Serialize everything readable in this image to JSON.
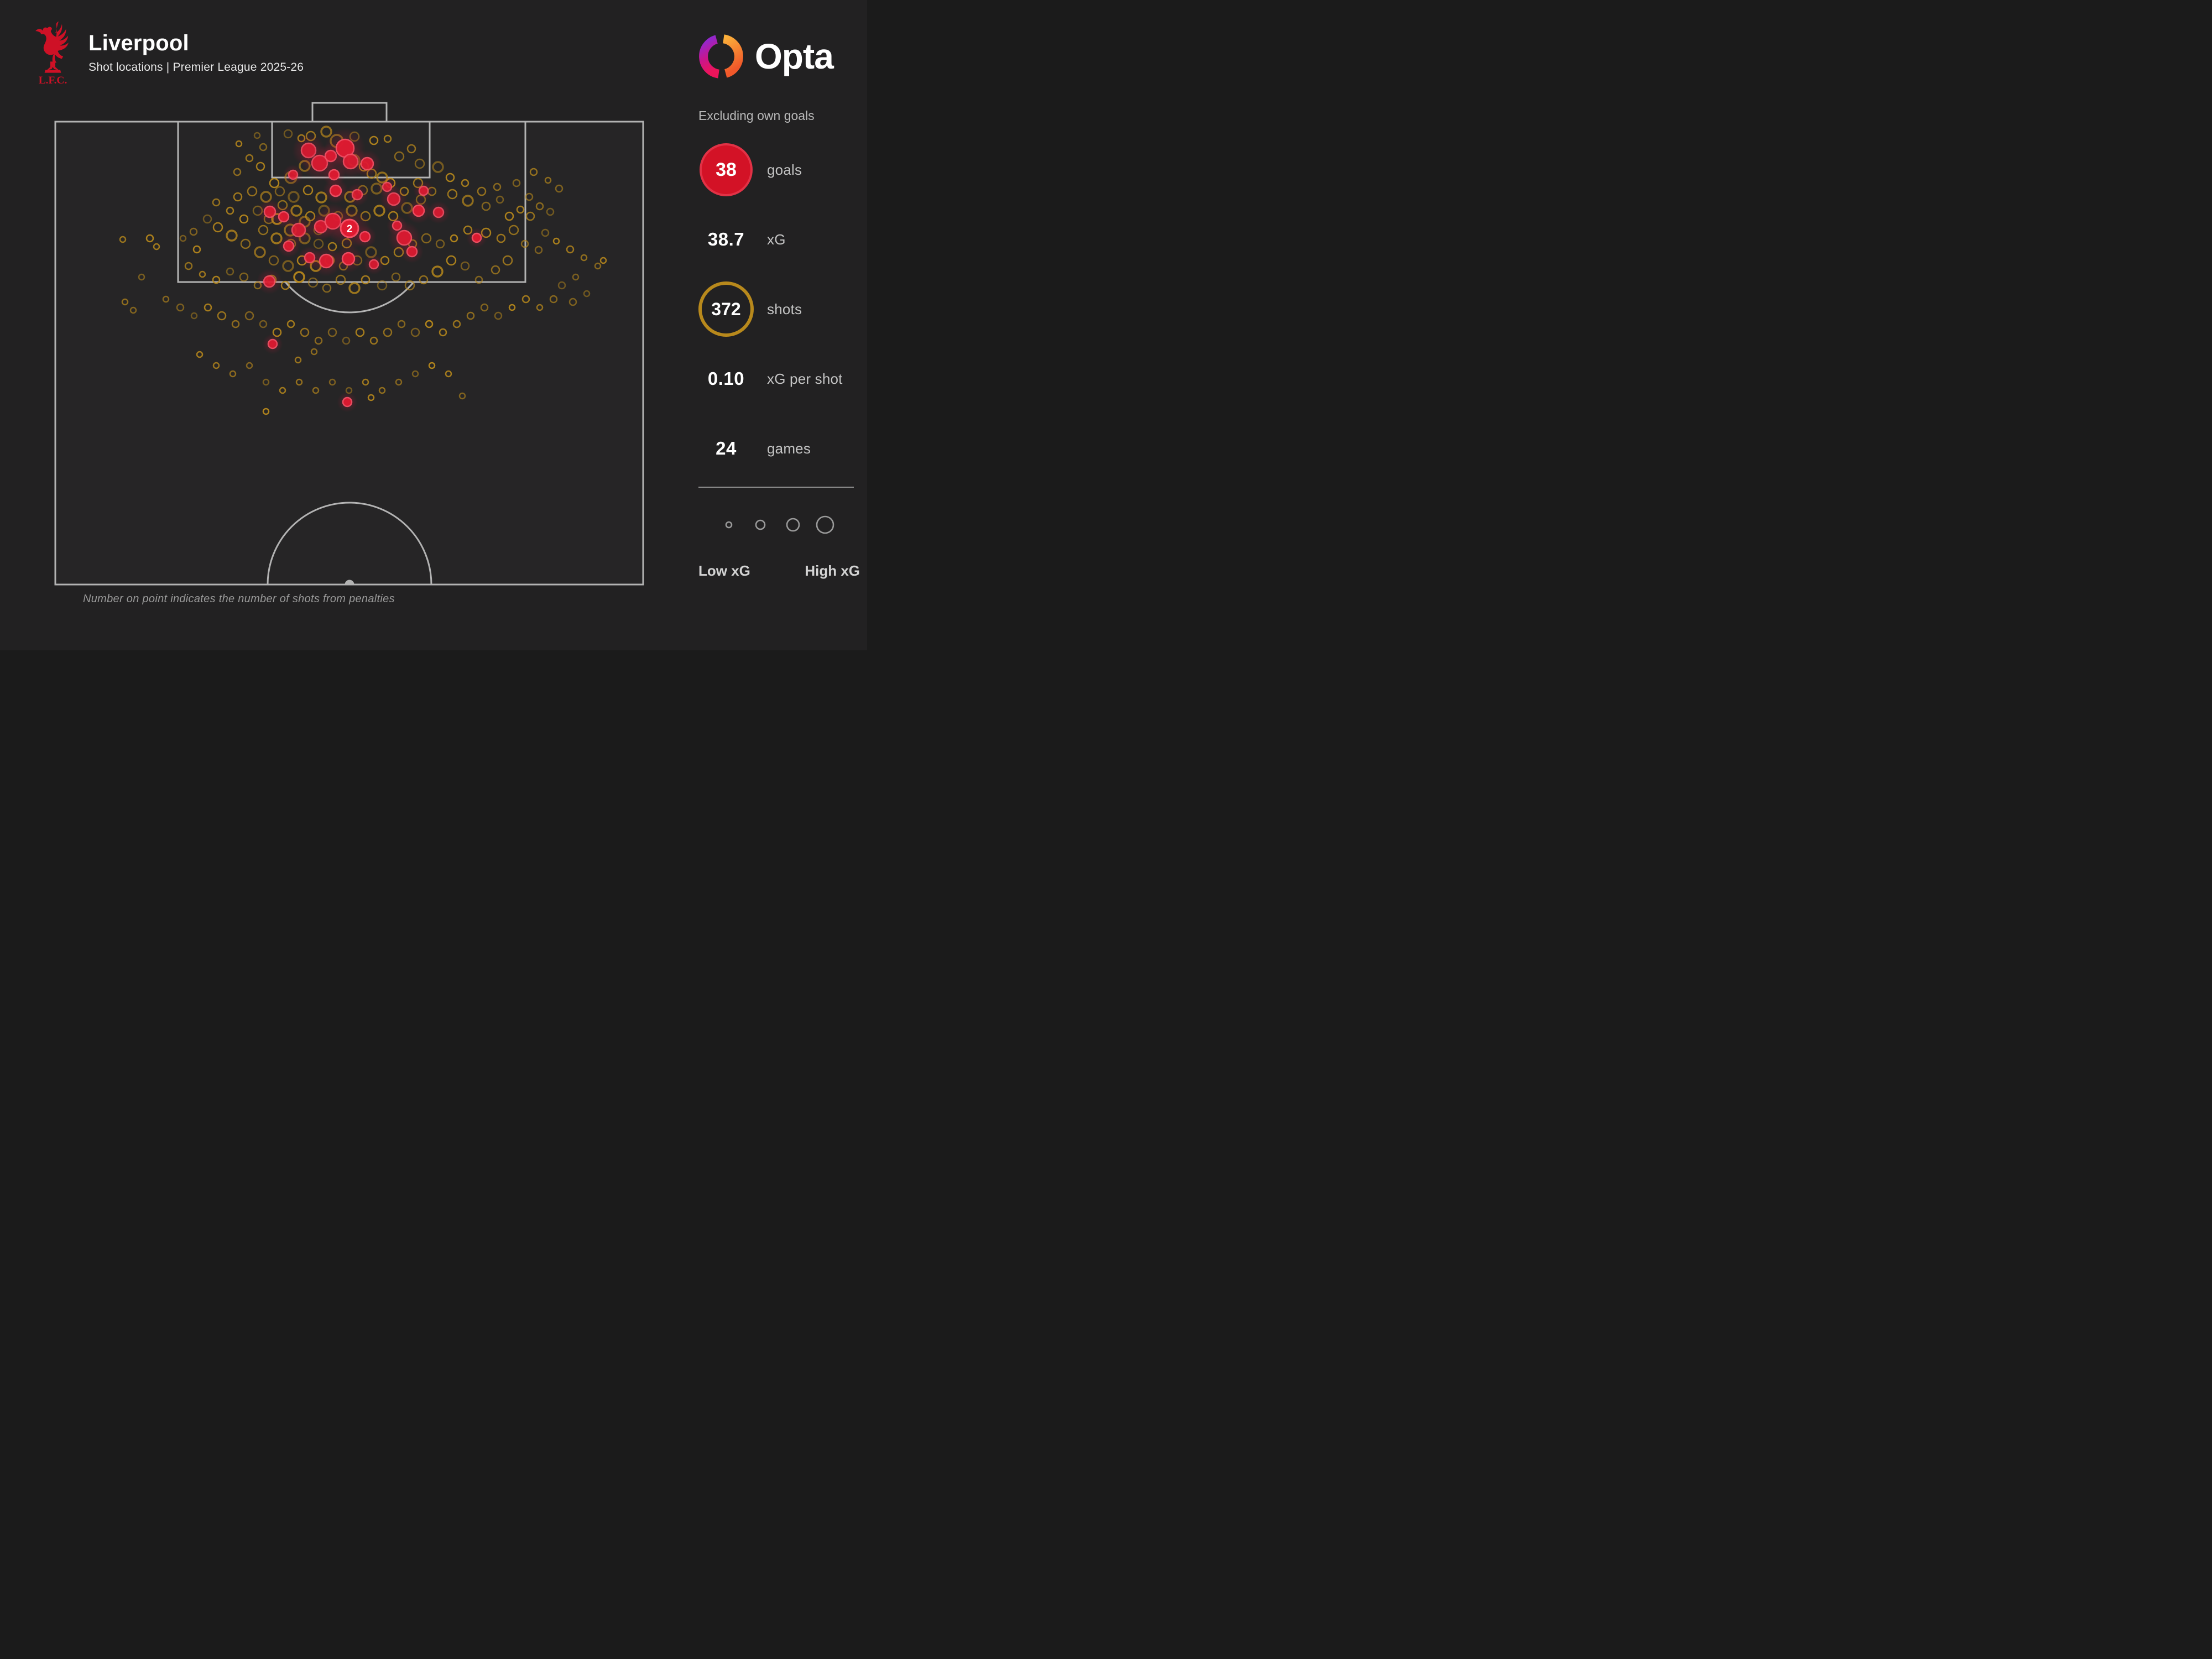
{
  "header": {
    "title": "Liverpool",
    "subtitle": "Shot locations | Premier League 2025-26",
    "crest_text": "L.F.C."
  },
  "brand": {
    "name": "Opta"
  },
  "stats": {
    "note": "Excluding own goals",
    "items": [
      {
        "value": "38",
        "label": "goals"
      },
      {
        "value": "38.7",
        "label": "xG"
      },
      {
        "value": "372",
        "label": "shots"
      },
      {
        "value": "0.10",
        "label": "xG per shot"
      },
      {
        "value": "24",
        "label": "games"
      }
    ]
  },
  "legend": {
    "low_label": "Low xG",
    "high_label": "High xG",
    "sizes": [
      5,
      8,
      11,
      15
    ]
  },
  "caption": "Number on point indicates the number of shots from penalties",
  "colors": {
    "background": "#222122",
    "pitch_line": "#b3b3b3",
    "goal_fill": "#df1a31",
    "goal_ring": "#f25064",
    "goal_halo": "#d6173a",
    "shot_stroke": "#b8891c",
    "badge_red": "#d31226",
    "badge_gold": "#b8891c",
    "text_gray": "#c4c4c4"
  },
  "chart_data": {
    "type": "scatter",
    "title": "Liverpool shot locations, Premier League 2025-26",
    "legend_note": "marker size encodes xG (Low xG small, High xG large); gold open circles = shots, red filled = goals",
    "coordinate_space": "page pixels, attacking goal at top, pitch rect x:100-1163 y:220-1057",
    "penalty_marker": {
      "x": 632,
      "y": 413,
      "r": 16,
      "label": "2"
    },
    "series": [
      {
        "name": "goals",
        "points": [
          [
            558,
            272,
            13
          ],
          [
            578,
            295,
            14
          ],
          [
            598,
            282,
            10
          ],
          [
            624,
            268,
            16
          ],
          [
            634,
            292,
            13
          ],
          [
            664,
            296,
            11
          ],
          [
            604,
            316,
            9
          ],
          [
            530,
            316,
            8
          ],
          [
            488,
            383,
            10
          ],
          [
            513,
            392,
            9
          ],
          [
            540,
            416,
            12
          ],
          [
            580,
            410,
            11
          ],
          [
            602,
            400,
            14
          ],
          [
            660,
            428,
            9
          ],
          [
            712,
            360,
            11
          ],
          [
            731,
            430,
            13
          ],
          [
            757,
            381,
            10
          ],
          [
            793,
            384,
            9
          ],
          [
            718,
            408,
            8
          ],
          [
            607,
            345,
            10
          ],
          [
            646,
            352,
            9
          ],
          [
            560,
            466,
            9
          ],
          [
            590,
            472,
            12
          ],
          [
            630,
            468,
            11
          ],
          [
            676,
            478,
            8
          ],
          [
            745,
            455,
            9
          ],
          [
            862,
            430,
            8
          ],
          [
            487,
            509,
            10
          ],
          [
            493,
            622,
            8
          ],
          [
            628,
            727,
            8
          ],
          [
            700,
            338,
            8
          ],
          [
            766,
            345,
            8
          ],
          [
            522,
            445,
            9
          ]
        ]
      },
      {
        "name": "shots",
        "points": [
          [
            521,
            242,
            7
          ],
          [
            545,
            250,
            6
          ],
          [
            562,
            246,
            8
          ],
          [
            590,
            238,
            9
          ],
          [
            609,
            255,
            11
          ],
          [
            641,
            247,
            8
          ],
          [
            676,
            254,
            7
          ],
          [
            701,
            251,
            6
          ],
          [
            744,
            269,
            7
          ],
          [
            722,
            283,
            8
          ],
          [
            759,
            296,
            8
          ],
          [
            640,
            290,
            10
          ],
          [
            658,
            301,
            8
          ],
          [
            672,
            314,
            8
          ],
          [
            691,
            321,
            9
          ],
          [
            551,
            300,
            9
          ],
          [
            526,
            321,
            10
          ],
          [
            496,
            331,
            8
          ],
          [
            471,
            301,
            7
          ],
          [
            451,
            286,
            6
          ],
          [
            429,
            311,
            6
          ],
          [
            476,
            266,
            6
          ],
          [
            792,
            302,
            9
          ],
          [
            814,
            321,
            7
          ],
          [
            841,
            331,
            6
          ],
          [
            871,
            346,
            7
          ],
          [
            899,
            338,
            6
          ],
          [
            934,
            331,
            6
          ],
          [
            465,
            245,
            5
          ],
          [
            432,
            260,
            5
          ],
          [
            818,
            351,
            8
          ],
          [
            846,
            363,
            9
          ],
          [
            879,
            373,
            7
          ],
          [
            904,
            361,
            6
          ],
          [
            921,
            391,
            7
          ],
          [
            941,
            379,
            6
          ],
          [
            959,
            391,
            7
          ],
          [
            976,
            373,
            6
          ],
          [
            957,
            356,
            6
          ],
          [
            995,
            383,
            6
          ],
          [
            879,
            421,
            8
          ],
          [
            906,
            431,
            7
          ],
          [
            929,
            416,
            8
          ],
          [
            949,
            441,
            6
          ],
          [
            974,
            452,
            6
          ],
          [
            375,
            396,
            7
          ],
          [
            394,
            411,
            8
          ],
          [
            419,
            426,
            9
          ],
          [
            444,
            441,
            8
          ],
          [
            350,
            419,
            6
          ],
          [
            331,
            431,
            5
          ],
          [
            356,
            451,
            6
          ],
          [
            430,
            356,
            7
          ],
          [
            456,
            346,
            8
          ],
          [
            481,
            356,
            9
          ],
          [
            506,
            346,
            8
          ],
          [
            531,
            356,
            9
          ],
          [
            557,
            344,
            8
          ],
          [
            581,
            357,
            9
          ],
          [
            633,
            356,
            9
          ],
          [
            656,
            344,
            8
          ],
          [
            681,
            341,
            9
          ],
          [
            706,
            331,
            8
          ],
          [
            731,
            346,
            7
          ],
          [
            756,
            331,
            8
          ],
          [
            781,
            346,
            7
          ],
          [
            761,
            361,
            8
          ],
          [
            736,
            376,
            9
          ],
          [
            711,
            391,
            8
          ],
          [
            686,
            381,
            9
          ],
          [
            661,
            391,
            8
          ],
          [
            636,
            381,
            9
          ],
          [
            611,
            391,
            8
          ],
          [
            586,
            381,
            9
          ],
          [
            561,
            391,
            8
          ],
          [
            536,
            381,
            9
          ],
          [
            511,
            371,
            8
          ],
          [
            486,
            396,
            8
          ],
          [
            466,
            381,
            8
          ],
          [
            441,
            396,
            7
          ],
          [
            416,
            381,
            6
          ],
          [
            391,
            366,
            6
          ],
          [
            525,
            416,
            10
          ],
          [
            551,
            401,
            9
          ],
          [
            576,
            416,
            8
          ],
          [
            501,
            396,
            9
          ],
          [
            500,
            431,
            9
          ],
          [
            476,
            416,
            8
          ],
          [
            526,
            441,
            8
          ],
          [
            551,
            431,
            9
          ],
          [
            576,
            441,
            8
          ],
          [
            601,
            446,
            7
          ],
          [
            627,
            440,
            8
          ],
          [
            470,
            456,
            9
          ],
          [
            495,
            471,
            8
          ],
          [
            521,
            481,
            9
          ],
          [
            546,
            471,
            8
          ],
          [
            571,
            481,
            9
          ],
          [
            596,
            471,
            8
          ],
          [
            621,
            481,
            7
          ],
          [
            646,
            471,
            8
          ],
          [
            671,
            456,
            9
          ],
          [
            696,
            471,
            7
          ],
          [
            721,
            456,
            8
          ],
          [
            746,
            441,
            7
          ],
          [
            771,
            431,
            8
          ],
          [
            796,
            441,
            7
          ],
          [
            821,
            431,
            6
          ],
          [
            846,
            416,
            7
          ],
          [
            918,
            471,
            8
          ],
          [
            896,
            488,
            7
          ],
          [
            866,
            506,
            6
          ],
          [
            841,
            481,
            7
          ],
          [
            816,
            471,
            8
          ],
          [
            791,
            491,
            9
          ],
          [
            766,
            506,
            7
          ],
          [
            741,
            516,
            8
          ],
          [
            716,
            501,
            7
          ],
          [
            691,
            516,
            8
          ],
          [
            661,
            506,
            7
          ],
          [
            641,
            521,
            9
          ],
          [
            616,
            506,
            8
          ],
          [
            591,
            521,
            7
          ],
          [
            566,
            511,
            8
          ],
          [
            541,
            501,
            9
          ],
          [
            516,
            516,
            7
          ],
          [
            491,
            506,
            8
          ],
          [
            466,
            516,
            6
          ],
          [
            441,
            501,
            7
          ],
          [
            416,
            491,
            6
          ],
          [
            391,
            506,
            6
          ],
          [
            366,
            496,
            5
          ],
          [
            341,
            481,
            6
          ],
          [
            300,
            541,
            5
          ],
          [
            326,
            556,
            6
          ],
          [
            351,
            571,
            5
          ],
          [
            376,
            556,
            6
          ],
          [
            401,
            571,
            7
          ],
          [
            426,
            586,
            6
          ],
          [
            451,
            571,
            7
          ],
          [
            476,
            586,
            6
          ],
          [
            501,
            601,
            7
          ],
          [
            526,
            586,
            6
          ],
          [
            551,
            601,
            7
          ],
          [
            576,
            616,
            6
          ],
          [
            601,
            601,
            7
          ],
          [
            626,
            616,
            6
          ],
          [
            651,
            601,
            7
          ],
          [
            676,
            616,
            6
          ],
          [
            701,
            601,
            7
          ],
          [
            726,
            586,
            6
          ],
          [
            751,
            601,
            7
          ],
          [
            776,
            586,
            6
          ],
          [
            801,
            601,
            6
          ],
          [
            826,
            586,
            6
          ],
          [
            851,
            571,
            6
          ],
          [
            876,
            556,
            6
          ],
          [
            901,
            571,
            6
          ],
          [
            926,
            556,
            5
          ],
          [
            951,
            541,
            6
          ],
          [
            976,
            556,
            5
          ],
          [
            1001,
            541,
            6
          ],
          [
            1036,
            546,
            6
          ],
          [
            1061,
            531,
            5
          ],
          [
            1091,
            471,
            5
          ],
          [
            222,
            433,
            5
          ],
          [
            226,
            546,
            5
          ],
          [
            241,
            561,
            5
          ],
          [
            256,
            501,
            5
          ],
          [
            271,
            431,
            6
          ],
          [
            283,
            446,
            5
          ],
          [
            965,
            311,
            6
          ],
          [
            991,
            326,
            5
          ],
          [
            1011,
            341,
            6
          ],
          [
            986,
            421,
            6
          ],
          [
            1006,
            436,
            5
          ],
          [
            1031,
            451,
            6
          ],
          [
            1056,
            466,
            5
          ],
          [
            1081,
            481,
            5
          ],
          [
            1041,
            501,
            5
          ],
          [
            1016,
            516,
            6
          ],
          [
            361,
            641,
            5
          ],
          [
            391,
            661,
            5
          ],
          [
            421,
            676,
            5
          ],
          [
            451,
            661,
            5
          ],
          [
            481,
            691,
            5
          ],
          [
            481,
            744,
            5
          ],
          [
            511,
            706,
            5
          ],
          [
            541,
            691,
            5
          ],
          [
            571,
            706,
            5
          ],
          [
            601,
            691,
            5
          ],
          [
            631,
            706,
            5
          ],
          [
            671,
            719,
            5
          ],
          [
            661,
            691,
            5
          ],
          [
            691,
            706,
            5
          ],
          [
            721,
            691,
            5
          ],
          [
            751,
            676,
            5
          ],
          [
            781,
            661,
            5
          ],
          [
            811,
            676,
            5
          ],
          [
            539,
            651,
            5
          ],
          [
            568,
            636,
            5
          ],
          [
            836,
            716,
            5
          ]
        ]
      }
    ]
  }
}
